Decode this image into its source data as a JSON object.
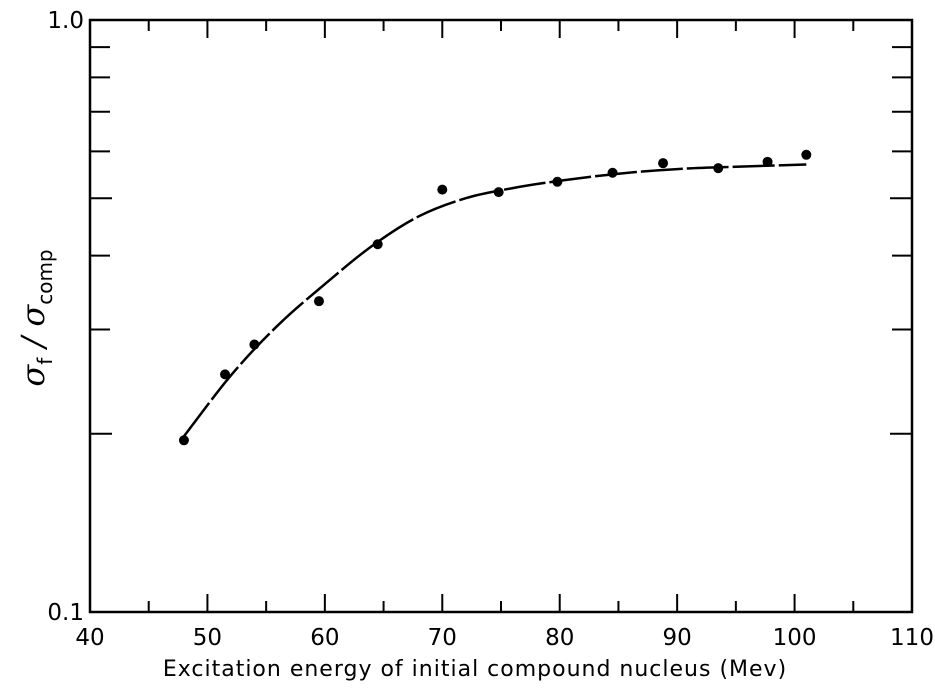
{
  "chart_data": {
    "type": "scatter",
    "title": "",
    "xlabel": "Excitation energy of initial compound nucleus (Mev)",
    "ylabel": {
      "symbol": "σ",
      "numerator_sub": "f",
      "separator": " / ",
      "denominator_sub": "comp"
    },
    "xlim": [
      40,
      110
    ],
    "ylim": [
      0.1,
      1.0
    ],
    "yscale": "log",
    "grid": false,
    "x_ticks": [
      40,
      50,
      60,
      70,
      80,
      90,
      100,
      110
    ],
    "x_tick_labels": [
      "40",
      "50",
      "60",
      "70",
      "80",
      "90",
      "100",
      "110"
    ],
    "y_tick_labels": [
      {
        "value": 1.0,
        "label": "1.0"
      },
      {
        "value": 0.1,
        "label": "0.1"
      }
    ],
    "series": [
      {
        "kind": "points",
        "x": [
          48,
          51.5,
          54,
          59.5,
          64.5,
          70,
          74.8,
          79.8,
          84.5,
          88.8,
          93.5,
          97.7,
          101
        ],
        "y": [
          0.195,
          0.252,
          0.283,
          0.335,
          0.418,
          0.517,
          0.512,
          0.533,
          0.552,
          0.573,
          0.562,
          0.576,
          0.592
        ]
      },
      {
        "kind": "curve",
        "x": [
          48,
          52,
          56,
          60,
          64,
          68,
          72,
          76,
          80,
          85,
          90,
          95,
          101
        ],
        "y": [
          0.198,
          0.251,
          0.305,
          0.358,
          0.415,
          0.466,
          0.5,
          0.52,
          0.535,
          0.55,
          0.56,
          0.565,
          0.57
        ]
      }
    ]
  }
}
